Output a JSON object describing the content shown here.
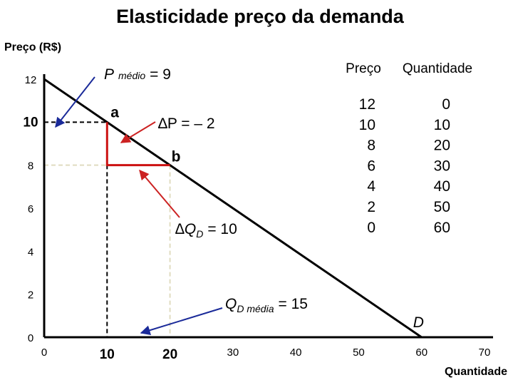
{
  "chart_data": {
    "type": "line",
    "title": "Elasticidade preço da demanda",
    "ylabel": "Preço (R$)",
    "xlabel": "Quantidade",
    "xlim": [
      0,
      70
    ],
    "ylim": [
      0,
      12
    ],
    "x_ticks": [
      0,
      10,
      20,
      30,
      40,
      50,
      60,
      70
    ],
    "y_ticks": [
      0,
      2,
      4,
      6,
      8,
      10,
      12
    ],
    "x_ticks_emphasized": [
      10,
      20
    ],
    "grid": false,
    "series": [
      {
        "name": "D",
        "x": [
          0,
          10,
          20,
          30,
          40,
          50,
          60
        ],
        "y": [
          12,
          10,
          8,
          6,
          4,
          2,
          0
        ],
        "color": "#000000"
      }
    ],
    "points": [
      {
        "label": "a",
        "x": 10,
        "y": 10
      },
      {
        "label": "b",
        "x": 20,
        "y": 8
      }
    ],
    "annotations": {
      "p_medio_main": "P",
      "p_medio_sub": "médio",
      "p_medio_value": "= 9",
      "delta_p": "∆P = – 2",
      "delta_qd_main": "∆Q",
      "delta_qd_sub": "D",
      "delta_qd_value": "= 10",
      "qd_media_main": "Q",
      "qd_media_sub": "D média",
      "qd_media_value": "= 15"
    },
    "table": {
      "headers": [
        "Preço",
        "Quantidade"
      ],
      "rows": [
        [
          12,
          0
        ],
        [
          10,
          10
        ],
        [
          8,
          20
        ],
        [
          6,
          30
        ],
        [
          4,
          40
        ],
        [
          2,
          50
        ],
        [
          0,
          60
        ]
      ]
    },
    "colors": {
      "curve": "#000000",
      "triangle": "#cc1111",
      "red_arrows": "#cc2222",
      "blue_arrows": "#1a2a99",
      "guides": "#e0dcc0"
    }
  }
}
